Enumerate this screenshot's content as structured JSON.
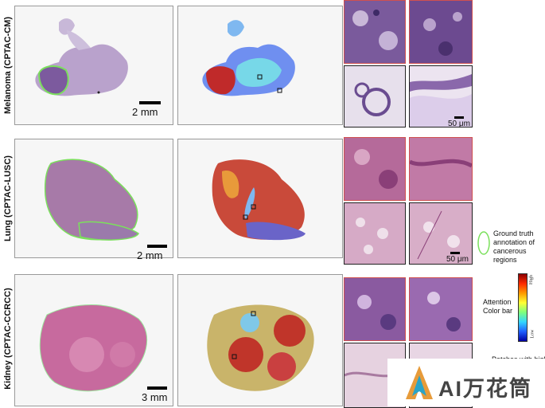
{
  "rows": [
    {
      "label": "Melanoma (CPTAC-CM)",
      "scale": "2 mm",
      "patch_scale": "50 μm"
    },
    {
      "label": "Lung (CPTAC-LUSC)",
      "scale": "2 mm",
      "patch_scale": "50 μm"
    },
    {
      "label": "Kidney (CPTAC-CCRCC)",
      "scale": "3 mm",
      "patch_scale": ""
    }
  ],
  "legend": {
    "ground_truth": "Ground truth annotation of cancerous regions",
    "attention_label": "Attention Color bar",
    "colorbar_high": "High",
    "colorbar_low": "Low",
    "patches_text": "Patches with high"
  },
  "watermark": {
    "text": "AI万花筒"
  },
  "colors": {
    "annotation": "#7be05c",
    "high_patch_border": "#d05050",
    "low_patch_border": "#222222"
  }
}
